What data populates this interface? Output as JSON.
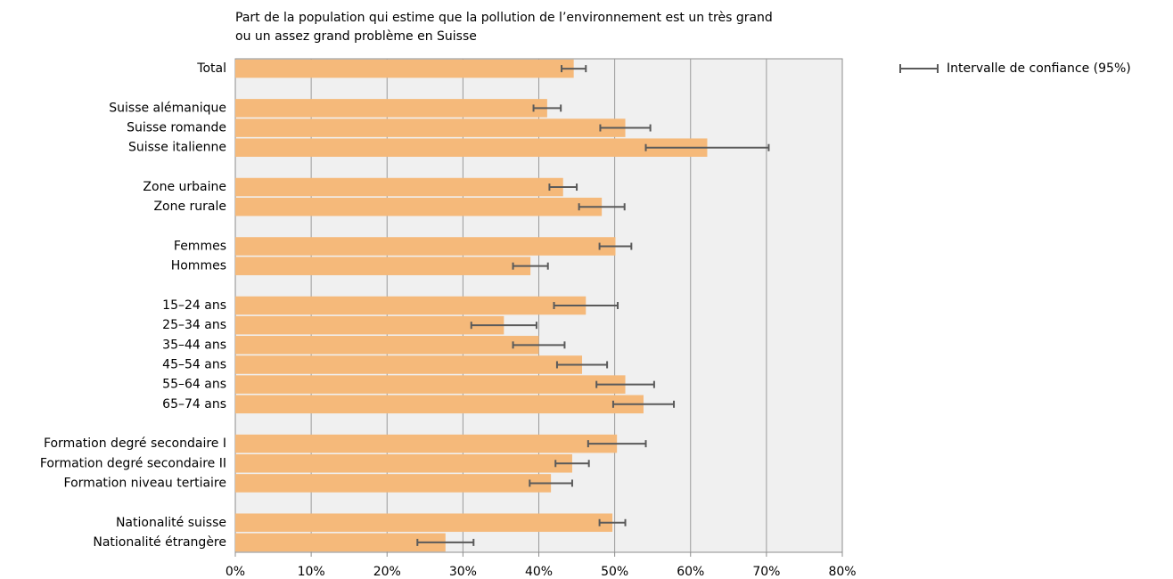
{
  "chart_data": {
    "type": "hbar",
    "title": [
      "Part de la population qui estime que la pollution de l’environnement est un très grand",
      "ou un assez grand problème en Suisse"
    ],
    "categories": [
      "Total",
      null,
      "Suisse alémanique",
      "Suisse romande",
      "Suisse italienne",
      null,
      "Zone urbaine",
      "Zone rurale",
      null,
      "Femmes",
      "Hommes",
      null,
      "15–24 ans",
      "25–34 ans",
      "35–44 ans",
      "45–54 ans",
      "55–64 ans",
      "65–74 ans",
      null,
      "Formation degré secondaire I",
      "Formation degré secondaire II",
      "Formation niveau tertiaire",
      null,
      "Nationalité suisse",
      "Nationalité étrangère"
    ],
    "values": [
      44.6,
      null,
      41.1,
      51.4,
      62.2,
      null,
      43.2,
      48.3,
      null,
      50.1,
      38.9,
      null,
      46.2,
      35.4,
      40.0,
      45.7,
      51.4,
      53.8,
      null,
      50.3,
      44.4,
      41.6,
      null,
      49.7,
      27.7
    ],
    "errors": [
      1.6,
      null,
      1.8,
      3.3,
      8.1,
      null,
      1.8,
      3.0,
      null,
      2.1,
      2.3,
      null,
      4.2,
      4.3,
      3.4,
      3.3,
      3.8,
      4.0,
      null,
      3.8,
      2.2,
      2.8,
      null,
      1.7,
      3.7
    ],
    "error_label": "Intervalle de confiance (95%)",
    "color": "#f5b97a",
    "error_color": "#5a5a5a",
    "xlim": [
      0,
      80
    ],
    "xticks": [
      {
        "value": 0,
        "label": "0%"
      },
      {
        "value": 10,
        "label": "10%"
      },
      {
        "value": 20,
        "label": "20%"
      },
      {
        "value": 30,
        "label": "30%"
      },
      {
        "value": 40,
        "label": "40%"
      },
      {
        "value": 50,
        "label": "50%"
      },
      {
        "value": 60,
        "label": "60%"
      },
      {
        "value": 70,
        "label": "70%"
      },
      {
        "value": 80,
        "label": "80%"
      }
    ],
    "grid": true,
    "legend": "upper right"
  }
}
